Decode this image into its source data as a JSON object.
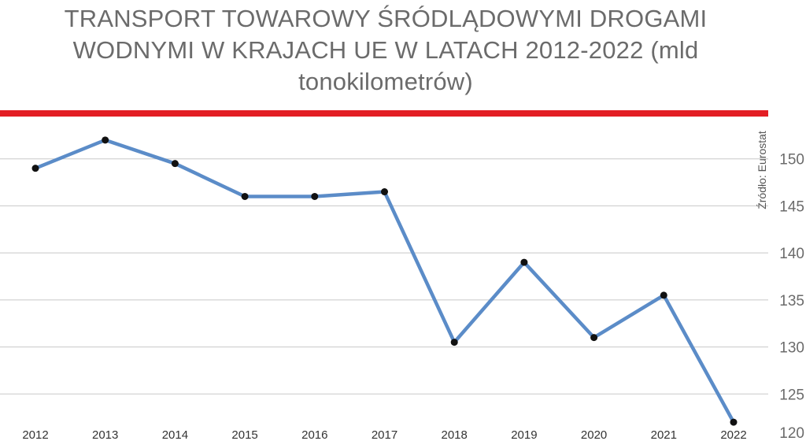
{
  "title": "TRANSPORT TOWAROWY ŚRÓDLĄDOWYMI DROGAMI WODNYMI W KRAJACH UE W LATACH 2012-2022 (mld tonokilometrów)",
  "source": "Źródło: Eurostat",
  "colors": {
    "accent_bar": "#e31e24",
    "line": "#5b8cc8",
    "marker": "#111111",
    "grid": "#c8c8c8",
    "text": "#6b6b6b"
  },
  "chart_data": {
    "type": "line",
    "title": "TRANSPORT TOWAROWY ŚRÓDLĄDOWYMI DROGAMI WODNYMI W KRAJACH UE W LATACH 2012-2022 (mld tonokilometrów)",
    "categories": [
      "2012",
      "2013",
      "2014",
      "2015",
      "2016",
      "2017",
      "2018",
      "2019",
      "2020",
      "2021",
      "2022"
    ],
    "series": [
      {
        "values": [
          149,
          152,
          149.5,
          146,
          146,
          146.5,
          130.5,
          139,
          131,
          135.5,
          122
        ]
      }
    ],
    "ylim": [
      120,
      155
    ],
    "yticks": [
      120,
      125,
      130,
      135,
      140,
      145,
      150
    ],
    "y_axis_position": "right",
    "grid": true,
    "markers": true
  }
}
